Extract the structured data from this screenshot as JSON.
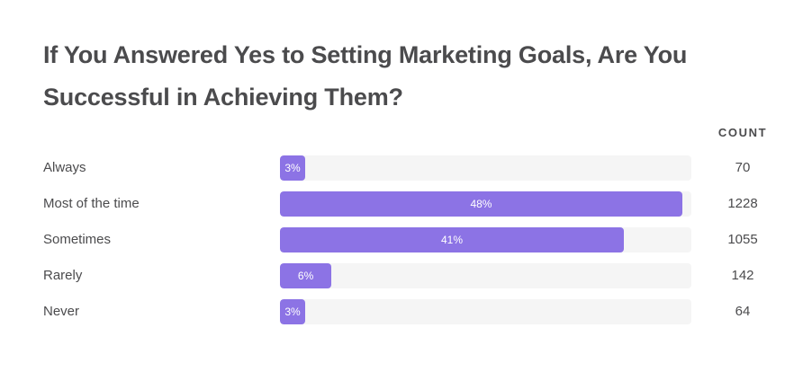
{
  "title": "If You Answered Yes to Setting Marketing Goals, Are You Successful in Achieving Them?",
  "count_header": "COUNT",
  "bar_color": "#8c73e5",
  "track_color": "#f5f5f5",
  "rows": [
    {
      "label": "Always",
      "pct": "3%",
      "width": 6.1,
      "count": "70"
    },
    {
      "label": "Most of the time",
      "pct": "48%",
      "width": 97.8,
      "count": "1228"
    },
    {
      "label": "Sometimes",
      "pct": "41%",
      "width": 83.6,
      "count": "1055"
    },
    {
      "label": "Rarely",
      "pct": "6%",
      "width": 12.5,
      "count": "142"
    },
    {
      "label": "Never",
      "pct": "3%",
      "width": 6.1,
      "count": "64"
    }
  ],
  "chart_data": {
    "type": "bar",
    "orientation": "horizontal",
    "title": "If You Answered Yes to Setting Marketing Goals, Are You Successful in Achieving Them?",
    "categories": [
      "Always",
      "Most of the time",
      "Sometimes",
      "Rarely",
      "Never"
    ],
    "series": [
      {
        "name": "Percent",
        "values": [
          3,
          48,
          41,
          6,
          3
        ]
      },
      {
        "name": "Count",
        "values": [
          70,
          1228,
          1055,
          142,
          64
        ]
      }
    ],
    "value_labels": [
      "3%",
      "48%",
      "41%",
      "6%",
      "3%"
    ],
    "xlabel": "",
    "ylabel": "",
    "grid": false,
    "legend": "none"
  }
}
